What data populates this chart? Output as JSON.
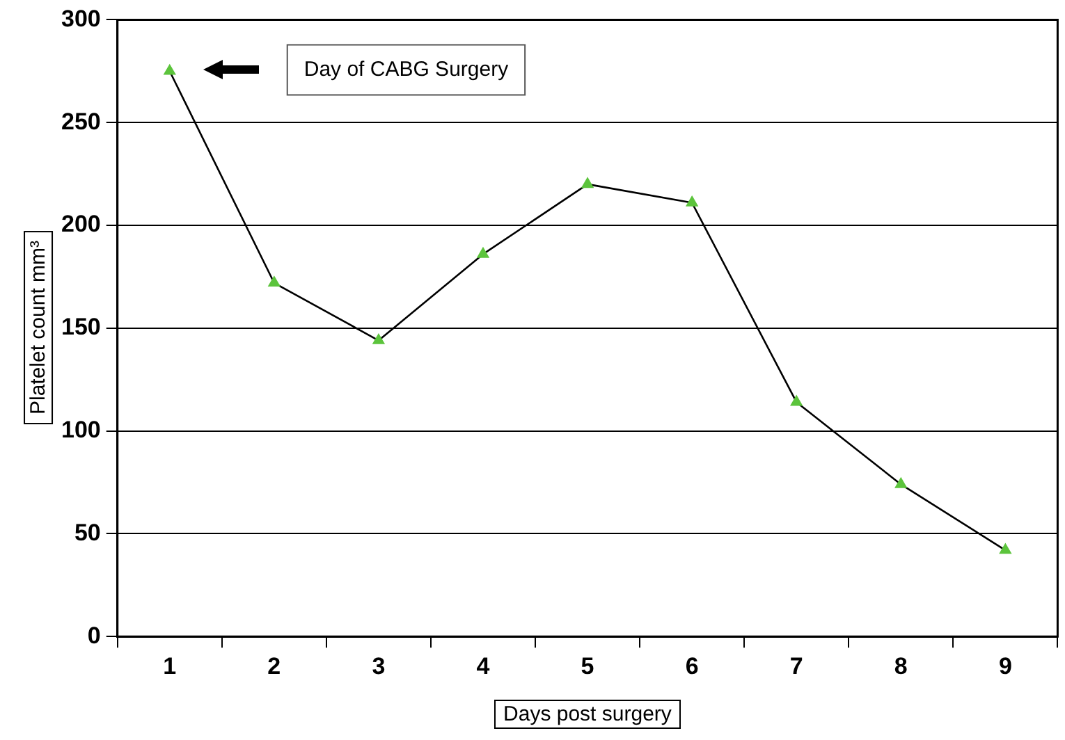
{
  "chart_data": {
    "type": "line",
    "xlabel": "Days post surgery",
    "ylabel": "Platelet count mm³",
    "categories": [
      "1",
      "2",
      "3",
      "4",
      "5",
      "6",
      "7",
      "8",
      "9"
    ],
    "series": [
      {
        "color": "#5cc43c",
        "values": [
          275,
          172,
          144,
          186,
          220,
          211,
          114,
          74,
          42
        ]
      }
    ],
    "ylim": [
      0,
      300
    ],
    "yticks": [
      0,
      50,
      100,
      150,
      200,
      250,
      300
    ],
    "grid": "y",
    "legend": false,
    "marker": "triangle",
    "annotations": [
      "Day of CABG Surgery"
    ]
  }
}
